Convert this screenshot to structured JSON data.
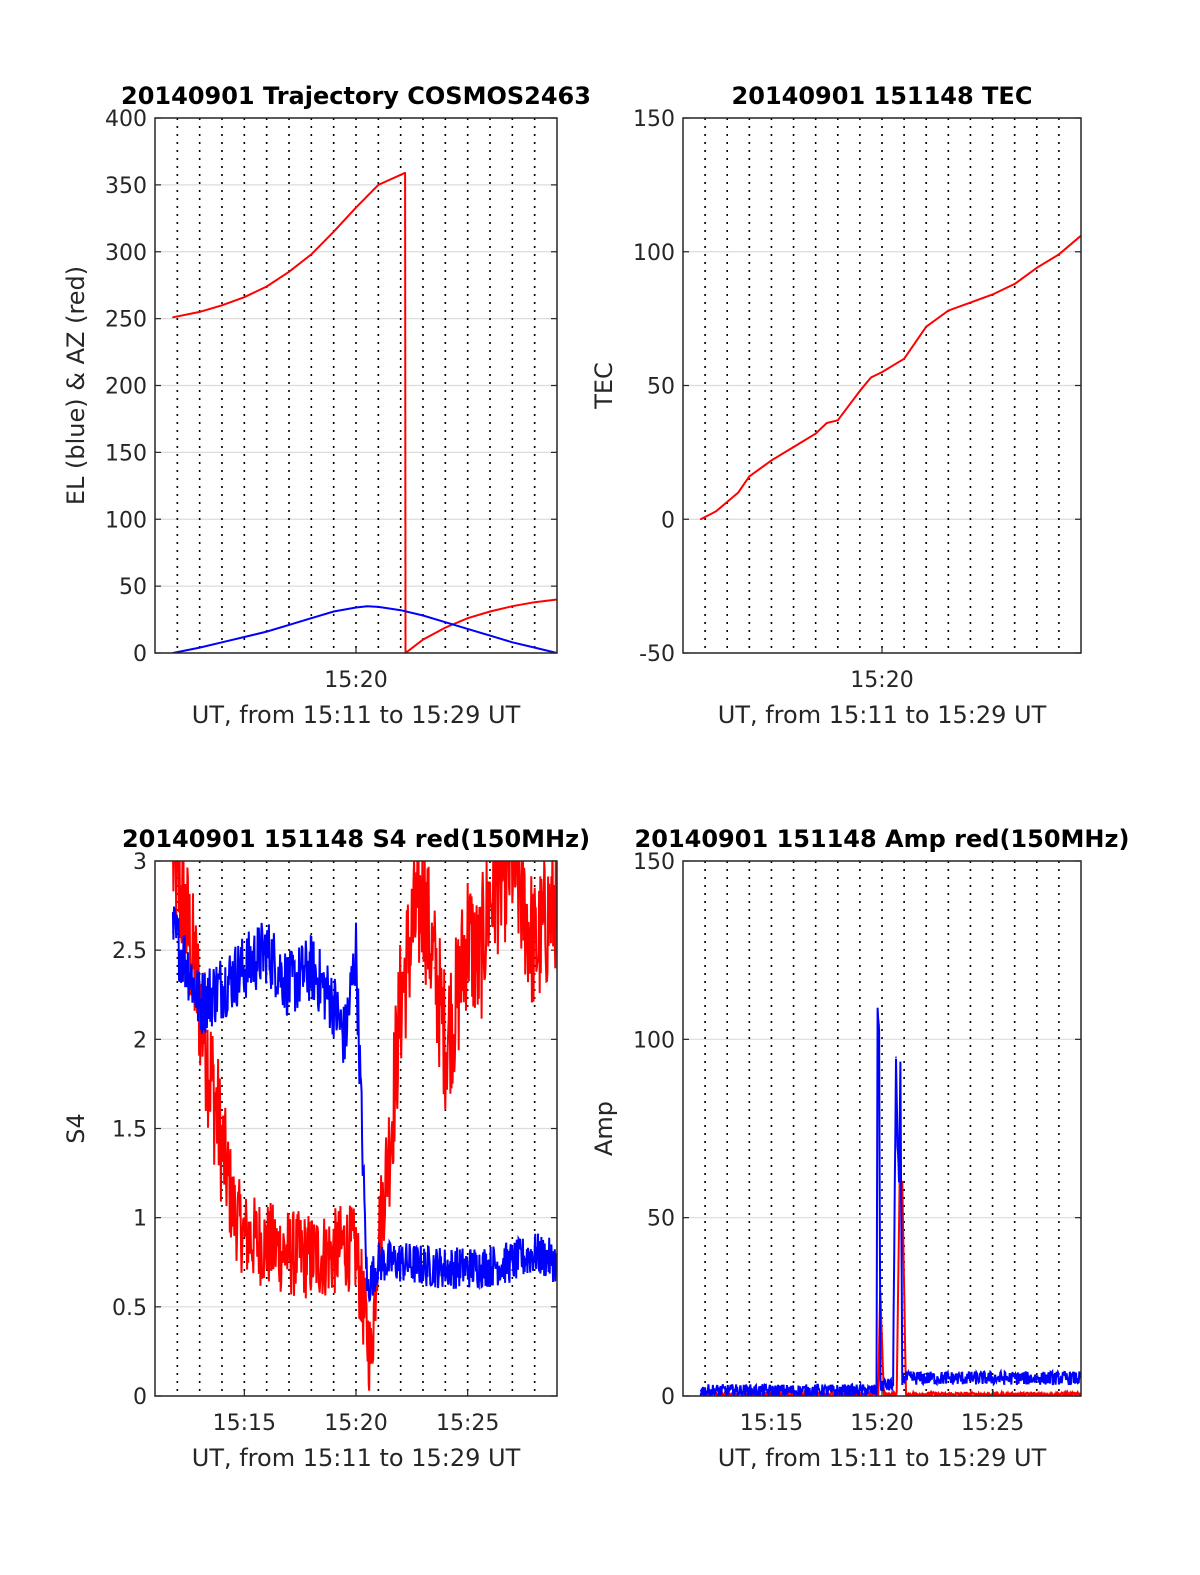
{
  "colors": {
    "red": "#ff0000",
    "blue": "#0000ff",
    "axis": "#262626",
    "grid": "#dcdcdc"
  },
  "chart_data": [
    {
      "type": "line",
      "title": "20140901 Trajectory COSMOS2463",
      "xlabel": "UT, from 15:11 to 15:29 UT",
      "ylabel": "EL (blue) & AZ (red)",
      "xlim": [
        "15:11:00",
        "15:29:00"
      ],
      "ylim": [
        0,
        400
      ],
      "yticks": [
        "0",
        "50",
        "100",
        "150",
        "200",
        "250",
        "300",
        "350",
        "400"
      ],
      "xticks": [
        "15:20"
      ],
      "xgrid_minutes": [
        "15:12",
        "15:13",
        "15:14",
        "15:15",
        "15:16",
        "15:17",
        "15:18",
        "15:19",
        "15:20",
        "15:21",
        "15:22",
        "15:23",
        "15:24",
        "15:25",
        "15:26",
        "15:27",
        "15:28"
      ],
      "grid": true,
      "series": [
        {
          "color": "red",
          "x": [
            "15:11:48",
            "15:13:00",
            "15:14:00",
            "15:15:00",
            "15:16:00",
            "15:17:00",
            "15:18:00",
            "15:19:00",
            "15:20:00",
            "15:21:00",
            "15:22:12"
          ],
          "y": [
            251,
            255,
            260,
            266,
            274,
            285,
            298,
            315,
            333,
            350,
            359
          ]
        },
        {
          "color": "red",
          "x": [
            "15:22:12",
            "15:22:13"
          ],
          "y": [
            359,
            0
          ]
        },
        {
          "color": "red",
          "x": [
            "15:22:13",
            "15:23:00",
            "15:24:00",
            "15:25:00",
            "15:26:00",
            "15:27:00",
            "15:28:00",
            "15:29:00"
          ],
          "y": [
            0,
            10,
            19,
            26,
            31,
            35,
            38,
            40
          ]
        },
        {
          "color": "blue",
          "x": [
            "15:11:48",
            "15:13:00",
            "15:14:00",
            "15:15:00",
            "15:16:00",
            "15:17:00",
            "15:18:00",
            "15:19:00",
            "15:20:00",
            "15:20:30",
            "15:21:00",
            "15:22:00",
            "15:23:00",
            "15:24:00",
            "15:25:00",
            "15:26:00",
            "15:27:00",
            "15:28:00",
            "15:29:00"
          ],
          "y": [
            0,
            4,
            8,
            12,
            16,
            21,
            26,
            31,
            34,
            35,
            34.5,
            32,
            28,
            23,
            18,
            13,
            8,
            4,
            0
          ]
        }
      ]
    },
    {
      "type": "line",
      "title": "20140901 151148 TEC",
      "xlabel": "UT, from 15:11 to 15:29 UT",
      "ylabel": "TEC",
      "xlim": [
        "15:11:00",
        "15:29:00"
      ],
      "ylim": [
        -50,
        150
      ],
      "yticks": [
        "-50",
        "0",
        "50",
        "100",
        "150"
      ],
      "xticks": [
        "15:20"
      ],
      "xgrid_minutes": [
        "15:12",
        "15:13",
        "15:14",
        "15:15",
        "15:16",
        "15:17",
        "15:18",
        "15:19",
        "15:20",
        "15:21",
        "15:22",
        "15:23",
        "15:24",
        "15:25",
        "15:26",
        "15:27",
        "15:28"
      ],
      "grid": true,
      "series": [
        {
          "color": "red",
          "x": [
            "15:11:48",
            "15:12:30",
            "15:13:30",
            "15:14:00",
            "15:15:00",
            "15:16:00",
            "15:17:00",
            "15:17:30",
            "15:18:00",
            "15:19:00",
            "15:19:30",
            "15:20:00",
            "15:21:00",
            "15:21:30",
            "15:22:00",
            "15:23:00",
            "15:24:00",
            "15:25:00",
            "15:26:00",
            "15:27:00",
            "15:28:00",
            "15:29:00"
          ],
          "y": [
            0,
            3,
            10,
            16,
            22,
            27,
            32,
            36,
            37,
            48,
            53,
            55,
            60,
            66,
            72,
            78,
            81,
            84,
            88,
            94,
            99,
            106
          ]
        }
      ]
    },
    {
      "type": "line",
      "title": "20140901 151148 S4 red(150MHz)",
      "xlabel": "UT, from 15:11 to 15:29 UT",
      "ylabel": "S4",
      "xlim": [
        "15:11:00",
        "15:29:00"
      ],
      "ylim": [
        0,
        3
      ],
      "yticks": [
        "0",
        "0.5",
        "1",
        "1.5",
        "2",
        "2.5",
        "3"
      ],
      "xticks": [
        "15:15",
        "15:20",
        "15:25"
      ],
      "xgrid_minutes": [
        "15:12",
        "15:13",
        "15:14",
        "15:15",
        "15:16",
        "15:17",
        "15:18",
        "15:19",
        "15:20",
        "15:21",
        "15:22",
        "15:23",
        "15:24",
        "15:25",
        "15:26",
        "15:27",
        "15:28"
      ],
      "grid": true,
      "series": [
        {
          "color": "red",
          "x": [
            "15:11:48",
            "15:12:30",
            "15:13:00",
            "15:13:30",
            "15:14:00",
            "15:14:30",
            "15:15:00",
            "15:16:00",
            "15:17:00",
            "15:18:00",
            "15:19:00",
            "15:19:30",
            "15:20:00",
            "15:20:40",
            "15:21:00",
            "15:21:30",
            "15:22:00",
            "15:22:30",
            "15:23:00",
            "15:23:30",
            "15:24:00",
            "15:24:30",
            "15:25:00",
            "15:25:30",
            "15:26:00",
            "15:27:00",
            "15:28:00",
            "15:29:00"
          ],
          "y": [
            3,
            2.6,
            2.2,
            1.8,
            1.4,
            1.05,
            0.9,
            0.85,
            0.8,
            0.78,
            0.8,
            0.85,
            0.8,
            0.2,
            0.9,
            1.4,
            2.2,
            2.6,
            2.8,
            2.4,
            2.0,
            2.2,
            2.6,
            2.4,
            2.8,
            3.0,
            2.5,
            2.8
          ],
          "noise": 0.25
        },
        {
          "color": "blue",
          "x": [
            "15:11:48",
            "15:12:30",
            "15:13:00",
            "15:14:00",
            "15:15:00",
            "15:16:00",
            "15:17:00",
            "15:18:00",
            "15:19:00",
            "15:19:30",
            "15:20:00",
            "15:20:30",
            "15:21:00",
            "15:22:00",
            "15:23:00",
            "15:24:00",
            "15:25:00",
            "15:26:00",
            "15:27:00",
            "15:28:00",
            "15:29:00"
          ],
          "y": [
            2.6,
            2.4,
            2.2,
            2.3,
            2.4,
            2.5,
            2.3,
            2.4,
            2.2,
            2.0,
            2.5,
            0.6,
            0.75,
            0.75,
            0.73,
            0.72,
            0.72,
            0.73,
            0.75,
            0.8,
            0.75
          ],
          "noise": 0.12
        }
      ]
    },
    {
      "type": "line",
      "title": "20140901 151148 Amp red(150MHz)",
      "xlabel": "UT, from 15:11 to 15:29 UT",
      "ylabel": "Amp",
      "xlim": [
        "15:11:00",
        "15:29:00"
      ],
      "ylim": [
        0,
        150
      ],
      "yticks": [
        "0",
        "50",
        "100",
        "150"
      ],
      "xticks": [
        "15:15",
        "15:20",
        "15:25"
      ],
      "xgrid_minutes": [
        "15:12",
        "15:13",
        "15:14",
        "15:15",
        "15:16",
        "15:17",
        "15:18",
        "15:19",
        "15:20",
        "15:21",
        "15:22",
        "15:23",
        "15:24",
        "15:25",
        "15:26",
        "15:27",
        "15:28"
      ],
      "grid": true,
      "series": [
        {
          "color": "red",
          "x": [
            "15:11:48",
            "15:19:40",
            "15:19:50",
            "15:19:55",
            "15:20:05",
            "15:20:40",
            "15:20:48",
            "15:20:55",
            "15:21:05",
            "15:29:00"
          ],
          "y": [
            0.5,
            0.5,
            0.5,
            30,
            0.5,
            0.5,
            62,
            60,
            0.5,
            0.5
          ],
          "noise": 0.5
        },
        {
          "color": "blue",
          "x": [
            "15:11:48",
            "15:15:00",
            "15:19:00",
            "15:19:45",
            "15:19:48",
            "15:19:52",
            "15:19:56",
            "15:20:30",
            "15:20:38",
            "15:20:42",
            "15:20:46",
            "15:20:50",
            "15:20:55",
            "15:21:30",
            "15:23:00",
            "15:25:00",
            "15:27:00",
            "15:29:00"
          ],
          "y": [
            1.5,
            1.5,
            1.5,
            1.5,
            107,
            104,
            3,
            3,
            95,
            70,
            60,
            92,
            5,
            5,
            5,
            5,
            5,
            5
          ],
          "noise": 1.2
        }
      ]
    }
  ]
}
